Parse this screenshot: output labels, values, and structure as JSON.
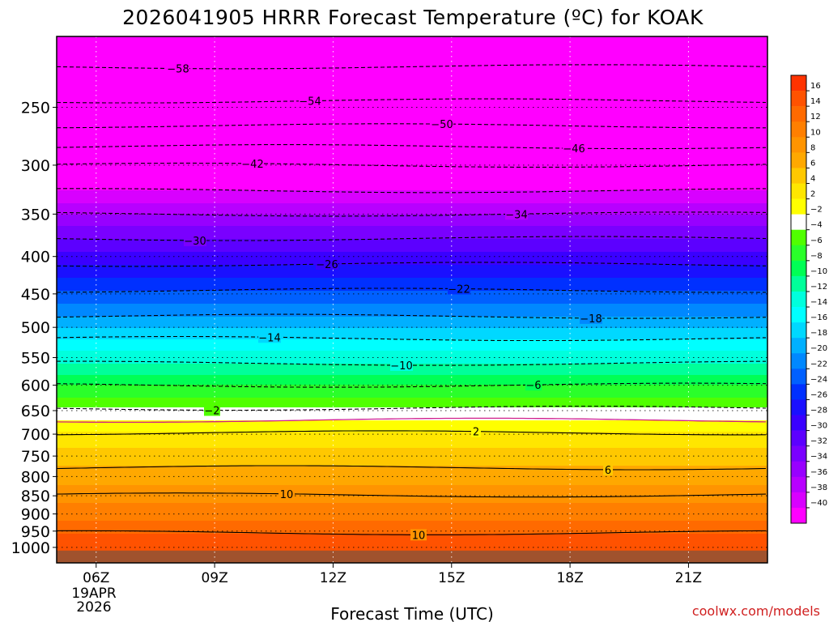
{
  "title": "2026041905 HRRR Forecast Temperature (ºC) for KOAK",
  "xlabel": "Forecast Time (UTC)",
  "credit": "coolwx.com/models",
  "date_label": [
    "19APR",
    "2026"
  ],
  "chart_data": {
    "type": "heatmap",
    "title": "2026041905 HRRR Forecast Temperature (ºC) for KOAK",
    "xlabel": "Forecast Time (UTC)",
    "ylabel": "",
    "x_ticks": [
      {
        "label": "06Z",
        "hour": 6
      },
      {
        "label": "09Z",
        "hour": 9
      },
      {
        "label": "12Z",
        "hour": 12
      },
      {
        "label": "15Z",
        "hour": 15
      },
      {
        "label": "18Z",
        "hour": 18
      },
      {
        "label": "21Z",
        "hour": 21
      }
    ],
    "xlim": [
      5,
      23
    ],
    "y_scale": "log",
    "ylim": [
      1050,
      200
    ],
    "y_ticks": [
      250,
      300,
      350,
      400,
      450,
      500,
      550,
      600,
      650,
      700,
      750,
      800,
      850,
      900,
      950,
      1000
    ],
    "grid": true,
    "surface_pressure": 1010,
    "temperature_profile": [
      {
        "p": 200,
        "t": -60
      },
      {
        "p": 220,
        "t": -58
      },
      {
        "p": 245,
        "t": -54
      },
      {
        "p": 265,
        "t": -50
      },
      {
        "p": 283,
        "t": -46
      },
      {
        "p": 300,
        "t": -42
      },
      {
        "p": 325,
        "t": -38
      },
      {
        "p": 350,
        "t": -34
      },
      {
        "p": 378,
        "t": -30
      },
      {
        "p": 410,
        "t": -26
      },
      {
        "p": 445,
        "t": -22
      },
      {
        "p": 483,
        "t": -18
      },
      {
        "p": 518,
        "t": -14
      },
      {
        "p": 560,
        "t": -10
      },
      {
        "p": 600,
        "t": -6
      },
      {
        "p": 645,
        "t": -2
      },
      {
        "p": 670,
        "t": 0
      },
      {
        "p": 695,
        "t": 2
      },
      {
        "p": 730,
        "t": 4
      },
      {
        "p": 775,
        "t": 6
      },
      {
        "p": 820,
        "t": 8
      },
      {
        "p": 870,
        "t": 10
      },
      {
        "p": 920,
        "t": 12
      },
      {
        "p": 960,
        "t": 14
      },
      {
        "p": 1000,
        "t": 15
      },
      {
        "p": 1010,
        "t": 15
      }
    ],
    "contours": [
      {
        "value": -58,
        "label": "-58",
        "p": 220
      },
      {
        "value": -54,
        "label": "-54",
        "p": 245
      },
      {
        "value": -50,
        "label": "-50",
        "p": 265
      },
      {
        "value": -46,
        "label": "-46",
        "p": 283
      },
      {
        "value": -42,
        "label": "-42",
        "p": 300
      },
      {
        "value": -38,
        "label": "",
        "p": 325
      },
      {
        "value": -34,
        "label": "-34",
        "p": 350
      },
      {
        "value": -30,
        "label": "-30",
        "p": 378
      },
      {
        "value": -26,
        "label": "-26",
        "p": 410
      },
      {
        "value": -22,
        "label": "-22",
        "p": 445
      },
      {
        "value": -18,
        "label": "-18",
        "p": 483
      },
      {
        "value": -14,
        "label": "-14",
        "p": 518
      },
      {
        "value": -10,
        "label": "-10",
        "p": 560
      },
      {
        "value": -6,
        "label": "-6",
        "p": 600
      },
      {
        "value": -2,
        "label": "-2",
        "p": 645
      },
      {
        "value": 0,
        "label": "",
        "p": 670
      },
      {
        "value": 2,
        "label": "2",
        "p": 697
      },
      {
        "value": 6,
        "label": "6",
        "p": 778
      },
      {
        "value": 10,
        "label": "10",
        "p": 848
      },
      {
        "value": 10,
        "label": "10",
        "p": 955
      }
    ],
    "colorbar": {
      "labels": [
        "16",
        "14",
        "12",
        "10",
        "8",
        "6",
        "4",
        "2",
        "-2",
        "-4",
        "-6",
        "-8",
        "-10",
        "-12",
        "-14",
        "-16",
        "-18",
        "-20",
        "-22",
        "-24",
        "-26",
        "-28",
        "-30",
        "-32",
        "-34",
        "-36",
        "-38",
        "-40"
      ],
      "colors": [
        "#ff3300",
        "#ff5200",
        "#ff6a00",
        "#ff7f00",
        "#ff9400",
        "#ffa800",
        "#ffc800",
        "#ffe600",
        "#ffff00",
        "#ffffff",
        "#50ff00",
        "#2aff2a",
        "#00ff55",
        "#00ff9a",
        "#00ffdd",
        "#00ffff",
        "#00d8ff",
        "#00b0ff",
        "#0088ff",
        "#0060ff",
        "#0030ff",
        "#1a10ff",
        "#3a00ff",
        "#5c00ff",
        "#7a00ff",
        "#9800ff",
        "#b800ff",
        "#d800ff",
        "#ff00ff"
      ]
    }
  }
}
